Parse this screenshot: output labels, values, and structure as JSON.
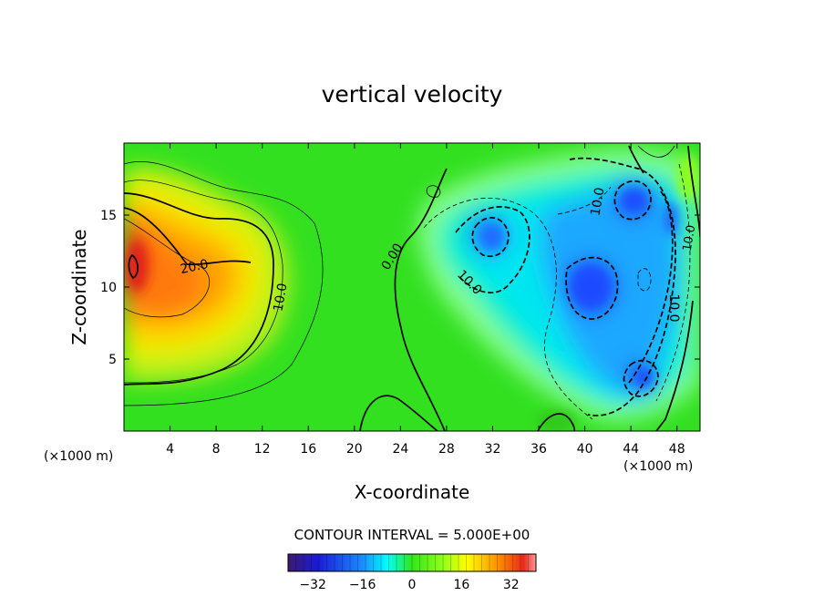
{
  "chart_data": {
    "type": "heatmap",
    "title": "vertical velocity",
    "xlabel": "X-coordinate",
    "ylabel": "Z-coordinate",
    "x_unit_left": "(×1000 m)",
    "x_unit_right": "(×1000 m)",
    "xlim": [
      0,
      50
    ],
    "ylim": [
      0,
      20
    ],
    "x_ticks": [
      4,
      8,
      12,
      16,
      20,
      24,
      28,
      32,
      36,
      40,
      44,
      48
    ],
    "y_ticks": [
      5,
      10,
      15
    ],
    "contour_interval_label": "CONTOUR INTERVAL = 5.000E+00",
    "contour_labels": [
      {
        "text": "20.0",
        "x": 6.2,
        "z": 11.3
      },
      {
        "text": "10.0",
        "x": 13.8,
        "z": 9.5
      },
      {
        "text": "0.00",
        "x": 23.5,
        "z": 11.7
      },
      {
        "text": "10.0",
        "x": 29.8,
        "z": 10.2
      },
      {
        "text": "10.0",
        "x": 41.2,
        "z": 15.8
      },
      {
        "text": "10.0",
        "x": 47.0,
        "z": 8.5
      },
      {
        "text": "10.0",
        "x": 49.3,
        "z": 13.0
      }
    ],
    "colorbar": {
      "range": [
        -40,
        40
      ],
      "ticks": [
        -32,
        -16,
        0,
        16,
        32
      ],
      "tick_labels": [
        "−32",
        "−16",
        "0",
        "16",
        "32"
      ]
    },
    "features": [
      {
        "kind": "updraft",
        "x": 1.0,
        "z": 11.7,
        "value": 30
      },
      {
        "kind": "updraft",
        "x": 7.5,
        "z": 9.5,
        "value": 20
      },
      {
        "kind": "downdraft",
        "x": 41.2,
        "z": 10.0,
        "value": -22
      },
      {
        "kind": "downdraft",
        "x": 44.2,
        "z": 15.5,
        "value": -20
      },
      {
        "kind": "downdraft",
        "x": 45.0,
        "z": 3.7,
        "value": -17
      },
      {
        "kind": "downdraft",
        "x": 32.0,
        "z": 13.0,
        "value": -15
      },
      {
        "kind": "downdraft",
        "x": 47.5,
        "z": 14.0,
        "value": -12
      }
    ]
  }
}
